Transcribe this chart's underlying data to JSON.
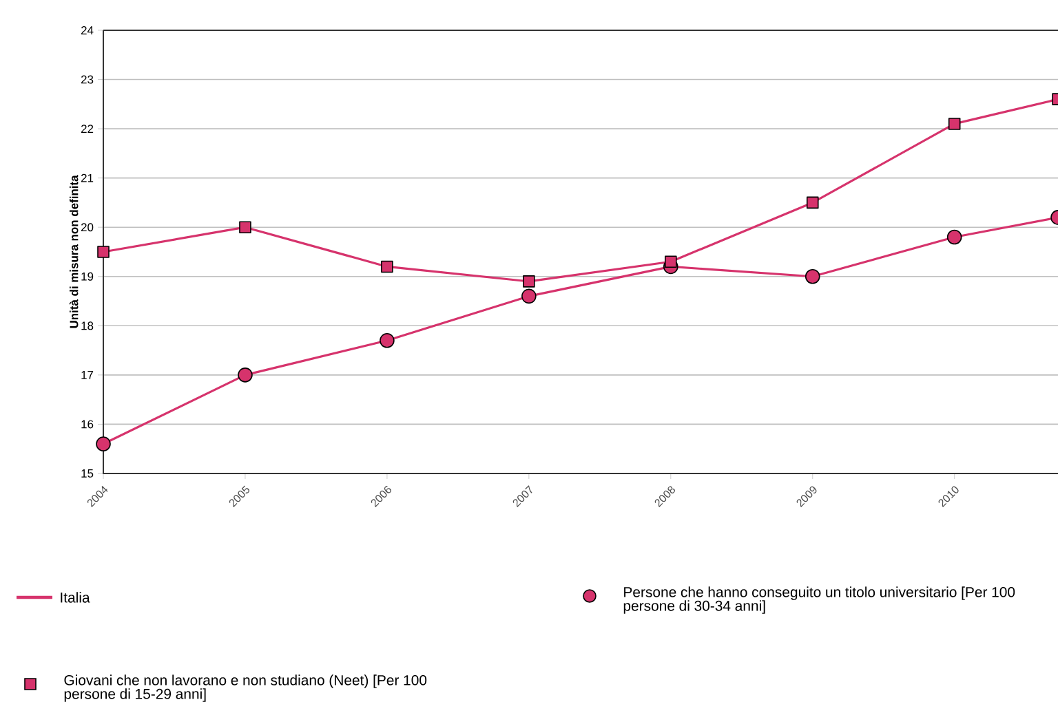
{
  "chart_data": {
    "type": "line",
    "ylabel": "Unità di misura non definita",
    "legend_title": "Italia",
    "legend": "bottom",
    "grid": "y",
    "xlim": [
      2004,
      2010.73
    ],
    "xticks": [
      2004,
      2005,
      2006,
      2007,
      2008,
      2009,
      2010
    ],
    "ylim": [
      15,
      24
    ],
    "yticks": [
      15,
      16,
      17,
      18,
      19,
      20,
      21,
      22,
      23,
      24
    ],
    "series": [
      {
        "name": "Giovani che non lavorano e non studiano (Neet) [Per 100 persone di 15-29 anni]",
        "color": "#d6336c",
        "marker": "square",
        "x": [
          2004,
          2005,
          2006,
          2007,
          2008,
          2009,
          2010,
          2010.73
        ],
        "values": [
          19.5,
          20.0,
          19.2,
          18.9,
          19.3,
          20.5,
          22.1,
          22.6
        ]
      },
      {
        "name": "Persone che hanno conseguito un titolo universitario [Per 100 persone di 30-34 anni]",
        "color": "#d6336c",
        "marker": "circle",
        "x": [
          2004,
          2005,
          2006,
          2007,
          2008,
          2009,
          2010,
          2010.73
        ],
        "values": [
          15.6,
          17.0,
          17.7,
          18.6,
          19.2,
          19.0,
          19.8,
          20.2
        ]
      }
    ]
  }
}
